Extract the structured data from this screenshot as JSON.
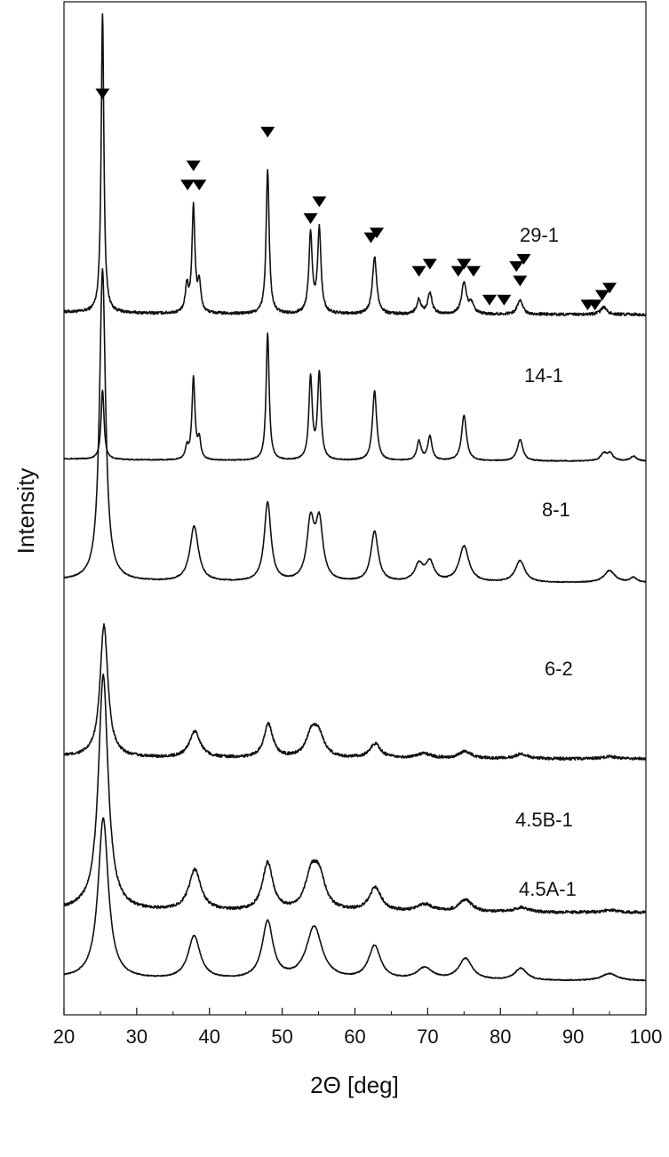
{
  "chart_data": {
    "type": "line",
    "xlabel": "2Θ [deg]",
    "ylabel": "Intensity",
    "xlim": [
      20,
      100
    ],
    "x_ticks": [
      20,
      30,
      40,
      50,
      60,
      70,
      80,
      90,
      100
    ],
    "grid": false,
    "legend": "none",
    "y_axis": "stacked offset traces, arbitrary units, no tick labels",
    "line_color": "#111111",
    "series": [
      {
        "name": "29-1",
        "peaks": [
          {
            "x": 25.3,
            "h": 1.25,
            "w": 0.22
          },
          {
            "x": 36.9,
            "h": 0.11,
            "w": 0.25
          },
          {
            "x": 37.8,
            "h": 0.44,
            "w": 0.25
          },
          {
            "x": 38.6,
            "h": 0.12,
            "w": 0.25
          },
          {
            "x": 48.0,
            "h": 0.6,
            "w": 0.25
          },
          {
            "x": 53.9,
            "h": 0.33,
            "w": 0.28
          },
          {
            "x": 55.1,
            "h": 0.35,
            "w": 0.28
          },
          {
            "x": 62.7,
            "h": 0.24,
            "w": 0.35
          },
          {
            "x": 68.8,
            "h": 0.06,
            "w": 0.35
          },
          {
            "x": 70.3,
            "h": 0.09,
            "w": 0.35
          },
          {
            "x": 75.0,
            "h": 0.13,
            "w": 0.4
          },
          {
            "x": 76.0,
            "h": 0.04,
            "w": 0.4
          },
          {
            "x": 82.7,
            "h": 0.06,
            "w": 0.45
          },
          {
            "x": 94.2,
            "h": 0.03,
            "w": 0.5
          }
        ]
      },
      {
        "name": "14-1",
        "peaks": [
          {
            "x": 25.3,
            "h": 0.29,
            "w": 0.25
          },
          {
            "x": 36.9,
            "h": 0.05,
            "w": 0.25
          },
          {
            "x": 37.8,
            "h": 0.34,
            "w": 0.25
          },
          {
            "x": 38.6,
            "h": 0.08,
            "w": 0.25
          },
          {
            "x": 48.0,
            "h": 0.53,
            "w": 0.25
          },
          {
            "x": 53.9,
            "h": 0.34,
            "w": 0.28
          },
          {
            "x": 55.1,
            "h": 0.36,
            "w": 0.28
          },
          {
            "x": 62.7,
            "h": 0.29,
            "w": 0.35
          },
          {
            "x": 68.8,
            "h": 0.08,
            "w": 0.35
          },
          {
            "x": 70.3,
            "h": 0.1,
            "w": 0.35
          },
          {
            "x": 75.0,
            "h": 0.19,
            "w": 0.4
          },
          {
            "x": 82.7,
            "h": 0.09,
            "w": 0.45
          },
          {
            "x": 94.2,
            "h": 0.03,
            "w": 0.5
          },
          {
            "x": 95.1,
            "h": 0.03,
            "w": 0.5
          },
          {
            "x": 98.3,
            "h": 0.02,
            "w": 0.5
          }
        ]
      },
      {
        "name": "8-1",
        "peaks": [
          {
            "x": 25.3,
            "h": 1.3,
            "w": 0.5
          },
          {
            "x": 37.9,
            "h": 0.23,
            "w": 0.7
          },
          {
            "x": 48.0,
            "h": 0.33,
            "w": 0.55
          },
          {
            "x": 53.9,
            "h": 0.24,
            "w": 0.6
          },
          {
            "x": 55.1,
            "h": 0.24,
            "w": 0.6
          },
          {
            "x": 62.7,
            "h": 0.21,
            "w": 0.6
          },
          {
            "x": 68.8,
            "h": 0.07,
            "w": 0.7
          },
          {
            "x": 70.3,
            "h": 0.08,
            "w": 0.7
          },
          {
            "x": 75.0,
            "h": 0.15,
            "w": 0.8
          },
          {
            "x": 82.7,
            "h": 0.09,
            "w": 0.8
          },
          {
            "x": 95.0,
            "h": 0.05,
            "w": 0.9
          },
          {
            "x": 98.3,
            "h": 0.02,
            "w": 0.6
          }
        ]
      },
      {
        "name": "6-2",
        "peaks": [
          {
            "x": 25.5,
            "h": 0.55,
            "w": 0.65
          },
          {
            "x": 38.0,
            "h": 0.11,
            "w": 0.9
          },
          {
            "x": 48.1,
            "h": 0.14,
            "w": 0.75
          },
          {
            "x": 54.0,
            "h": 0.09,
            "w": 0.9
          },
          {
            "x": 55.0,
            "h": 0.09,
            "w": 0.9
          },
          {
            "x": 62.8,
            "h": 0.06,
            "w": 0.9
          },
          {
            "x": 69.5,
            "h": 0.02,
            "w": 1.2
          },
          {
            "x": 75.2,
            "h": 0.03,
            "w": 1.0
          },
          {
            "x": 82.9,
            "h": 0.02,
            "w": 1.0
          },
          {
            "x": 95.0,
            "h": 0.01,
            "w": 1.0
          }
        ]
      },
      {
        "name": "4.5B-1",
        "peaks": [
          {
            "x": 25.4,
            "h": 0.98,
            "w": 0.8
          },
          {
            "x": 38.0,
            "h": 0.17,
            "w": 1.0
          },
          {
            "x": 48.0,
            "h": 0.2,
            "w": 0.85
          },
          {
            "x": 54.0,
            "h": 0.14,
            "w": 1.0
          },
          {
            "x": 55.1,
            "h": 0.13,
            "w": 1.0
          },
          {
            "x": 62.8,
            "h": 0.1,
            "w": 1.0
          },
          {
            "x": 69.6,
            "h": 0.03,
            "w": 1.3
          },
          {
            "x": 75.2,
            "h": 0.05,
            "w": 1.1
          },
          {
            "x": 82.9,
            "h": 0.02,
            "w": 1.1
          },
          {
            "x": 95.0,
            "h": 0.01,
            "w": 1.2
          }
        ]
      },
      {
        "name": "4.5A-1",
        "peaks": [
          {
            "x": 25.4,
            "h": 0.67,
            "w": 0.85
          },
          {
            "x": 37.9,
            "h": 0.18,
            "w": 1.0
          },
          {
            "x": 48.0,
            "h": 0.24,
            "w": 0.9
          },
          {
            "x": 54.4,
            "h": 0.22,
            "w": 1.3
          },
          {
            "x": 62.7,
            "h": 0.14,
            "w": 1.0
          },
          {
            "x": 69.6,
            "h": 0.05,
            "w": 1.3
          },
          {
            "x": 75.2,
            "h": 0.09,
            "w": 1.1
          },
          {
            "x": 82.8,
            "h": 0.05,
            "w": 1.0
          },
          {
            "x": 95.0,
            "h": 0.03,
            "w": 1.3
          }
        ]
      }
    ],
    "markers": {
      "symbol": "filled-down-triangle",
      "series": "29-1",
      "positions": [
        {
          "x": 25.3,
          "level": 0.92
        },
        {
          "x": 37.0,
          "level": 0.54
        },
        {
          "x": 37.8,
          "level": 0.62
        },
        {
          "x": 38.6,
          "level": 0.54
        },
        {
          "x": 48.0,
          "level": 0.76
        },
        {
          "x": 53.9,
          "level": 0.4
        },
        {
          "x": 55.1,
          "level": 0.47
        },
        {
          "x": 62.2,
          "level": 0.32
        },
        {
          "x": 63.0,
          "level": 0.34
        },
        {
          "x": 68.8,
          "level": 0.18
        },
        {
          "x": 70.3,
          "level": 0.21
        },
        {
          "x": 74.2,
          "level": 0.18
        },
        {
          "x": 75.0,
          "level": 0.21
        },
        {
          "x": 76.3,
          "level": 0.18
        },
        {
          "x": 78.5,
          "level": 0.06
        },
        {
          "x": 80.5,
          "level": 0.06
        },
        {
          "x": 82.2,
          "level": 0.2
        },
        {
          "x": 83.2,
          "level": 0.23
        },
        {
          "x": 82.7,
          "level": 0.14
        },
        {
          "x": 92.0,
          "level": 0.04
        },
        {
          "x": 93.0,
          "level": 0.04
        },
        {
          "x": 94.0,
          "level": 0.08
        },
        {
          "x": 95.0,
          "level": 0.11
        }
      ]
    }
  }
}
